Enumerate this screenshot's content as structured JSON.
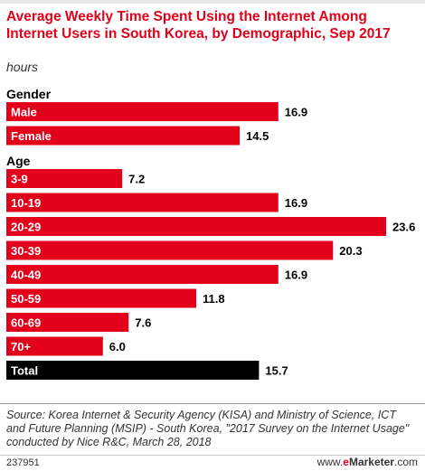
{
  "title": "Average Weekly Time Spent Using the Internet Among Internet Users in South Korea, by Demographic, Sep 2017",
  "subtitle": "hours",
  "chart_data": {
    "type": "bar",
    "orientation": "horizontal",
    "unit": "hours",
    "value_range": [
      0,
      23.6
    ],
    "colors": {
      "bar": "#e2001a",
      "total": "#000000"
    },
    "groups": [
      {
        "name": "Gender",
        "categories": [
          "Male",
          "Female"
        ],
        "values": [
          16.9,
          14.5
        ]
      },
      {
        "name": "Age",
        "categories": [
          "3-9",
          "10-19",
          "20-29",
          "30-39",
          "40-49",
          "50-59",
          "60-69",
          "70+"
        ],
        "values": [
          7.2,
          16.9,
          23.6,
          20.3,
          16.9,
          11.8,
          7.6,
          6.0
        ]
      }
    ],
    "total": {
      "label": "Total",
      "value": 15.7
    }
  },
  "source": "Source: Korea Internet & Security Agency (KISA) and Ministry of Science, ICT and Future Planning (MSIP) - South Korea, \"2017 Survey on the Internet Usage\" conducted by Nice R&C, March 28, 2018",
  "chart_id": "237951",
  "brand": {
    "www": "www.",
    "e": "e",
    "name": "Marketer",
    "com": ".com"
  }
}
